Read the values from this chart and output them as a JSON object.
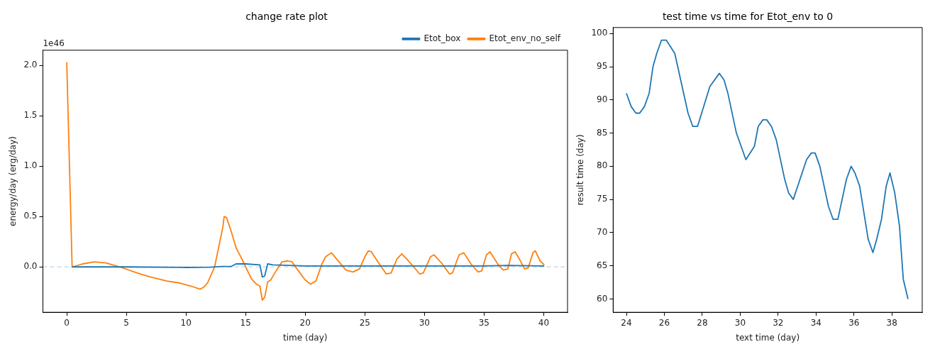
{
  "chart_data": [
    {
      "type": "line",
      "title": "change rate plot",
      "xlabel": "time (day)",
      "ylabel": "energy/day (erg/day)",
      "annotations": [
        "1e46"
      ],
      "xlim": [
        -2,
        42
      ],
      "ylim": [
        -0.45,
        2.15
      ],
      "xticks": [
        0,
        5,
        10,
        15,
        20,
        25,
        30,
        35,
        40
      ],
      "yticks": [
        {
          "value": 0,
          "label": "0.0"
        },
        {
          "value": 0.5,
          "label": "0.5"
        },
        {
          "value": 1,
          "label": "1.0"
        },
        {
          "value": 1.5,
          "label": "1.5"
        },
        {
          "value": 2,
          "label": "2.0"
        }
      ],
      "legend": "top right",
      "grid": false,
      "marker": "none",
      "line_style": "solid",
      "ref_lines": [
        {
          "axis": "y",
          "value": 0,
          "color": "#c6dbef",
          "line_style": "dashed"
        }
      ],
      "series": [
        {
          "name": "Etot_box",
          "color": "#1f77b4",
          "x": [
            0.45,
            5,
            10,
            12,
            13,
            13.8,
            14.2,
            15,
            16.2,
            16.4,
            16.6,
            16.85,
            17.3,
            20,
            25,
            30,
            35,
            37,
            40.05
          ],
          "values": [
            0,
            0,
            -0.005,
            -0.003,
            0.005,
            0.005,
            0.03,
            0.03,
            0.02,
            -0.1,
            -0.09,
            0.03,
            0.02,
            0.01,
            0.01,
            0.01,
            0.01,
            0.015,
            0.01
          ]
        },
        {
          "name": "Etot_env_no_self",
          "color": "#ff7f0e",
          "x": [
            0,
            0.45,
            1.33,
            2.3,
            3.3,
            4.45,
            6.15,
            7,
            8.4,
            9.5,
            10.4,
            11.2,
            11.5,
            11.8,
            12.4,
            13.1,
            13.2,
            13.4,
            13.8,
            14.2,
            14.6,
            15.5,
            15.9,
            16.2,
            16.4,
            16.6,
            16.85,
            17.1,
            17.5,
            18.05,
            18.5,
            18.9,
            19.5,
            20,
            20.45,
            20.9,
            21.4,
            21.7,
            22.2,
            22.7,
            23.4,
            24,
            24.55,
            25,
            25.3,
            25.55,
            26.1,
            26.8,
            27.2,
            27.7,
            28.1,
            28.5,
            29.1,
            29.6,
            29.9,
            30.5,
            30.8,
            31.5,
            32.1,
            32.35,
            32.9,
            33.3,
            33.9,
            34.5,
            34.8,
            35.2,
            35.5,
            36.2,
            36.6,
            37,
            37.3,
            37.6,
            38,
            38.4,
            38.7,
            39.1,
            39.3,
            39.7,
            40.05
          ],
          "values": [
            2.03,
            0,
            0.03,
            0.05,
            0.04,
            0,
            -0.07,
            -0.1,
            -0.14,
            -0.16,
            -0.19,
            -0.22,
            -0.2,
            -0.16,
            0,
            0.4,
            0.5,
            0.49,
            0.35,
            0.19,
            0.1,
            -0.12,
            -0.17,
            -0.19,
            -0.33,
            -0.3,
            -0.15,
            -0.13,
            -0.05,
            0.05,
            0.06,
            0.05,
            -0.05,
            -0.13,
            -0.17,
            -0.14,
            0.03,
            0.1,
            0.14,
            0.07,
            -0.03,
            -0.05,
            -0.02,
            0.1,
            0.16,
            0.15,
            0.05,
            -0.07,
            -0.06,
            0.08,
            0.13,
            0.08,
            0,
            -0.07,
            -0.06,
            0.1,
            0.12,
            0.03,
            -0.07,
            -0.06,
            0.12,
            0.14,
            0.03,
            -0.05,
            -0.04,
            0.12,
            0.15,
            0.02,
            -0.03,
            -0.02,
            0.13,
            0.15,
            0.07,
            -0.02,
            -0.01,
            0.14,
            0.16,
            0.06,
            0.02
          ]
        }
      ]
    },
    {
      "type": "line",
      "title": "test time vs time for Etot_env to 0",
      "xlabel": "text time (day)",
      "ylabel": "result time (day)",
      "xlim": [
        23.3,
        39.6
      ],
      "ylim": [
        58,
        100.9
      ],
      "xticks": [
        24,
        26,
        28,
        30,
        32,
        34,
        36,
        38
      ],
      "yticks": [
        60,
        65,
        70,
        75,
        80,
        85,
        90,
        95,
        100
      ],
      "legend": false,
      "grid": false,
      "marker": "none",
      "line_style": "solid",
      "series": [
        {
          "color": "#1f77b4",
          "x": [
            24,
            24.25,
            24.5,
            24.7,
            24.95,
            25.2,
            25.4,
            25.6,
            25.85,
            26.1,
            26.55,
            27.25,
            27.5,
            27.75,
            28.4,
            28.9,
            29.15,
            29.35,
            29.8,
            30.3,
            30.75,
            30.95,
            31.2,
            31.4,
            31.65,
            31.9,
            32.35,
            32.55,
            32.8,
            33.5,
            33.75,
            33.95,
            34.2,
            34.65,
            34.9,
            35.15,
            35.6,
            35.85,
            36.05,
            36.3,
            36.75,
            37,
            37.2,
            37.45,
            37.7,
            37.9,
            38.15,
            38.4,
            38.6,
            38.85
          ],
          "values": [
            91,
            89,
            88,
            88,
            89,
            91,
            95,
            97,
            99,
            99,
            97,
            88,
            86,
            86,
            92,
            94,
            93,
            91,
            85,
            81,
            83,
            86,
            87,
            87,
            86,
            84,
            78,
            76,
            75,
            81,
            82,
            82,
            80,
            74,
            72,
            72,
            78,
            80,
            79,
            77,
            69,
            67,
            69,
            72,
            77,
            79,
            76,
            71,
            63,
            60
          ]
        }
      ]
    }
  ]
}
